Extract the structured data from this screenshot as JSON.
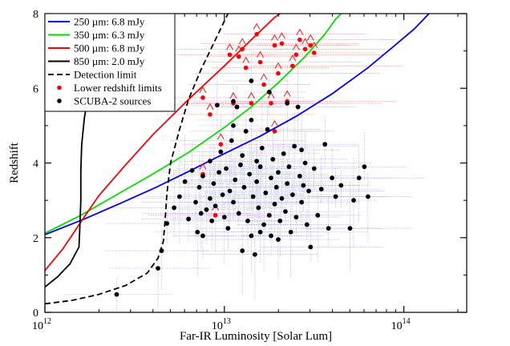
{
  "chart_data": {
    "type": "scatter",
    "xlabel": "Far-IR Luminosity [Solar Lum]",
    "ylabel": "Redshift",
    "xscale": "log",
    "xlim_exp": [
      12,
      14.35
    ],
    "ylim": [
      0,
      8
    ],
    "x_ticks": [
      {
        "base": "10",
        "exp": "12",
        "value": 12
      },
      {
        "base": "10",
        "exp": "13",
        "value": 13
      },
      {
        "base": "10",
        "exp": "14",
        "value": 14
      }
    ],
    "y_ticks": [
      {
        "label": "0",
        "value": 0
      },
      {
        "label": "2",
        "value": 2
      },
      {
        "label": "4",
        "value": 4
      },
      {
        "label": "6",
        "value": 6
      },
      {
        "label": "8",
        "value": 8
      }
    ],
    "legend_position": "top-left",
    "legend": [
      {
        "label": "250 µm: 6.8 mJy",
        "kind": "line",
        "color": "#0000ff"
      },
      {
        "label": "350 µm: 6.3 mJy",
        "kind": "line",
        "color": "#00e000"
      },
      {
        "label": "500 µm: 6.8 mJy",
        "kind": "line",
        "color": "#ff0000"
      },
      {
        "label": "850 µm: 2.0 mJy",
        "kind": "line",
        "color": "#000000"
      },
      {
        "label": "Detection limit",
        "kind": "dashed",
        "color": "#000000"
      },
      {
        "label": "Lower redshift limits",
        "kind": "marker",
        "color": "#ff0000"
      },
      {
        "label": "SCUBA-2 sources",
        "kind": "marker",
        "color": "#000000"
      }
    ],
    "curves": [
      {
        "name": "250 µm: 6.8 mJy",
        "color": "#0000ff",
        "dashed": false,
        "points": [
          [
            12.0,
            2.08
          ],
          [
            12.22,
            2.5
          ],
          [
            12.42,
            2.92
          ],
          [
            12.62,
            3.35
          ],
          [
            12.82,
            3.82
          ],
          [
            13.0,
            4.25
          ],
          [
            13.2,
            4.72
          ],
          [
            13.4,
            5.25
          ],
          [
            13.6,
            5.85
          ],
          [
            13.8,
            6.55
          ],
          [
            13.95,
            7.15
          ],
          [
            14.06,
            7.6
          ],
          [
            14.14,
            8.0
          ]
        ]
      },
      {
        "name": "350 µm: 6.3 mJy",
        "color": "#00e000",
        "dashed": false,
        "points": [
          [
            12.0,
            2.12
          ],
          [
            12.2,
            2.6
          ],
          [
            12.4,
            3.15
          ],
          [
            12.6,
            3.7
          ],
          [
            12.8,
            4.28
          ],
          [
            13.0,
            4.95
          ],
          [
            13.15,
            5.5
          ],
          [
            13.3,
            6.15
          ],
          [
            13.45,
            6.85
          ],
          [
            13.56,
            7.45
          ],
          [
            13.62,
            7.85
          ],
          [
            13.65,
            8.0
          ]
        ]
      },
      {
        "name": "500 µm: 6.8 mJy",
        "color": "#ff0000",
        "dashed": false,
        "points": [
          [
            12.0,
            1.12
          ],
          [
            12.1,
            1.7
          ],
          [
            12.2,
            2.42
          ],
          [
            12.3,
            3.12
          ],
          [
            12.45,
            3.95
          ],
          [
            12.6,
            4.75
          ],
          [
            12.8,
            5.7
          ],
          [
            13.0,
            6.6
          ],
          [
            13.15,
            7.3
          ],
          [
            13.28,
            7.9
          ],
          [
            13.31,
            8.0
          ]
        ]
      },
      {
        "name": "850 µm: 2.0 mJy",
        "color": "#000000",
        "dashed": false,
        "points": [
          [
            12.0,
            0.68
          ],
          [
            12.07,
            0.95
          ],
          [
            12.14,
            1.3
          ],
          [
            12.19,
            1.75
          ],
          [
            12.195,
            2.3
          ],
          [
            12.2,
            3.0
          ],
          [
            12.2,
            3.8
          ],
          [
            12.205,
            4.5
          ],
          [
            12.22,
            5.2
          ],
          [
            12.24,
            5.8
          ],
          [
            12.26,
            6.4
          ],
          [
            12.28,
            7.0
          ],
          [
            12.3,
            7.6
          ],
          [
            12.32,
            8.0
          ]
        ]
      },
      {
        "name": "Detection limit",
        "color": "#000000",
        "dashed": true,
        "points": [
          [
            12.0,
            0.23
          ],
          [
            12.15,
            0.32
          ],
          [
            12.3,
            0.48
          ],
          [
            12.45,
            0.72
          ],
          [
            12.57,
            1.05
          ],
          [
            12.63,
            1.45
          ],
          [
            12.66,
            1.9
          ],
          [
            12.67,
            2.5
          ],
          [
            12.68,
            3.2
          ],
          [
            12.7,
            4.0
          ],
          [
            12.75,
            4.9
          ],
          [
            12.8,
            5.7
          ],
          [
            12.87,
            6.5
          ],
          [
            12.95,
            7.3
          ],
          [
            13.02,
            8.0
          ]
        ]
      }
    ],
    "sources": [
      [
        12.4,
        0.48
      ],
      [
        12.63,
        1.18
      ],
      [
        12.65,
        1.65
      ],
      [
        12.68,
        2.38
      ],
      [
        12.72,
        2.8
      ],
      [
        12.75,
        3.1
      ],
      [
        12.78,
        3.5
      ],
      [
        12.8,
        2.5
      ],
      [
        12.82,
        3.8
      ],
      [
        12.84,
        2.95
      ],
      [
        12.85,
        2.15
      ],
      [
        12.86,
        3.35
      ],
      [
        12.87,
        2.65
      ],
      [
        12.88,
        3.65
      ],
      [
        12.9,
        2.75
      ],
      [
        12.92,
        3.05
      ],
      [
        12.93,
        2.45
      ],
      [
        12.94,
        3.45
      ],
      [
        12.95,
        2.85
      ],
      [
        12.96,
        5.55
      ],
      [
        12.97,
        3.75
      ],
      [
        12.98,
        4.3
      ],
      [
        12.99,
        3.15
      ],
      [
        13.0,
        2.55
      ],
      [
        13.01,
        3.85
      ],
      [
        13.02,
        2.25
      ],
      [
        13.03,
        3.25
      ],
      [
        13.04,
        4.6
      ],
      [
        13.05,
        5.0
      ],
      [
        13.05,
        2.95
      ],
      [
        13.06,
        3.55
      ],
      [
        13.07,
        5.5
      ],
      [
        13.08,
        2.65
      ],
      [
        13.09,
        3.95
      ],
      [
        13.1,
        4.2
      ],
      [
        13.1,
        1.65
      ],
      [
        13.11,
        3.35
      ],
      [
        13.12,
        4.85
      ],
      [
        13.13,
        2.45
      ],
      [
        13.14,
        3.7
      ],
      [
        13.15,
        5.15
      ],
      [
        13.15,
        2.05
      ],
      [
        13.16,
        3.1
      ],
      [
        13.17,
        1.55
      ],
      [
        13.18,
        3.5
      ],
      [
        13.19,
        2.8
      ],
      [
        13.2,
        3.9
      ],
      [
        13.21,
        4.4
      ],
      [
        13.22,
        2.35
      ],
      [
        13.23,
        3.2
      ],
      [
        13.24,
        4.9
      ],
      [
        13.25,
        2.6
      ],
      [
        13.26,
        3.6
      ],
      [
        13.27,
        4.1
      ],
      [
        13.28,
        2.9
      ],
      [
        13.29,
        3.35
      ],
      [
        13.3,
        3.75
      ],
      [
        13.31,
        2.45
      ],
      [
        13.32,
        3.05
      ],
      [
        13.33,
        4.25
      ],
      [
        13.34,
        2.7
      ],
      [
        13.35,
        3.45
      ],
      [
        13.36,
        3.9
      ],
      [
        13.37,
        2.15
      ],
      [
        13.38,
        3.15
      ],
      [
        13.39,
        4.45
      ],
      [
        13.4,
        2.55
      ],
      [
        13.41,
        5.5
      ],
      [
        13.42,
        3.65
      ],
      [
        13.43,
        2.95
      ],
      [
        13.44,
        3.4
      ],
      [
        13.45,
        4.0
      ],
      [
        13.46,
        2.35
      ],
      [
        13.47,
        3.25
      ],
      [
        13.48,
        1.75
      ],
      [
        13.5,
        3.85
      ],
      [
        13.52,
        2.6
      ],
      [
        13.54,
        3.3
      ],
      [
        13.56,
        4.5
      ],
      [
        13.58,
        2.25
      ],
      [
        13.6,
        3.6
      ],
      [
        13.62,
        3.1
      ],
      [
        13.65,
        3.4
      ],
      [
        13.7,
        2.25
      ],
      [
        13.72,
        3.0
      ],
      [
        13.75,
        3.6
      ],
      [
        13.78,
        3.9
      ],
      [
        13.8,
        3.1
      ],
      [
        13.35,
        5.6
      ],
      [
        13.25,
        5.9
      ],
      [
        13.15,
        6.2
      ],
      [
        13.05,
        5.65
      ],
      [
        12.88,
        2.05
      ],
      [
        12.92,
        4.05
      ],
      [
        13.2,
        2.15
      ],
      [
        13.3,
        1.95
      ],
      [
        13.43,
        4.35
      ],
      [
        13.18,
        4.05
      ],
      [
        13.26,
        2.05
      ]
    ],
    "lower_limits": [
      [
        12.88,
        5.75
      ],
      [
        12.92,
        5.3
      ],
      [
        12.98,
        4.5
      ],
      [
        13.03,
        6.9
      ],
      [
        13.05,
        5.6
      ],
      [
        13.08,
        6.85
      ],
      [
        13.1,
        7.05
      ],
      [
        13.12,
        6.55
      ],
      [
        13.15,
        5.6
      ],
      [
        13.18,
        7.45
      ],
      [
        13.2,
        6.7
      ],
      [
        13.22,
        6.1
      ],
      [
        13.26,
        5.6
      ],
      [
        13.28,
        4.85
      ],
      [
        13.28,
        7.15
      ],
      [
        13.3,
        6.4
      ],
      [
        13.32,
        7.2
      ],
      [
        13.35,
        5.65
      ],
      [
        13.38,
        6.6
      ],
      [
        13.4,
        6.9
      ],
      [
        13.42,
        7.3
      ],
      [
        13.45,
        7.05
      ],
      [
        13.48,
        7.15
      ],
      [
        13.5,
        6.95
      ],
      [
        12.88,
        3.7
      ],
      [
        12.95,
        2.6
      ]
    ]
  }
}
